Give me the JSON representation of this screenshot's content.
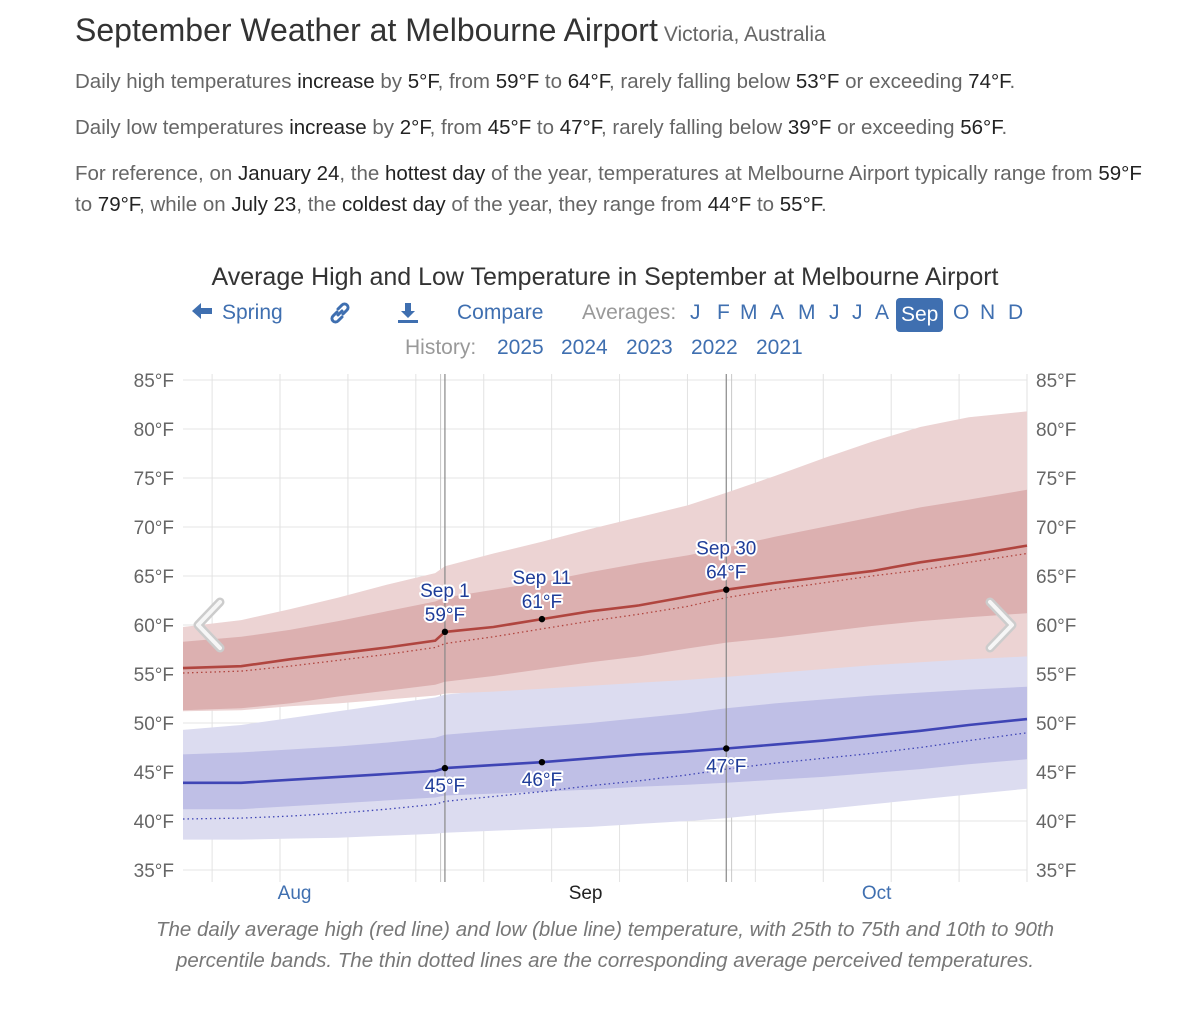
{
  "header": {
    "title": "September Weather at Melbourne Airport",
    "subtitle": "Victoria, Australia"
  },
  "summary": {
    "high": {
      "lead": "Daily high temperatures ",
      "trend": "increase",
      "by_word": " by ",
      "delta": "5°F",
      "from_word": ", from ",
      "start": "59°F",
      "to_word": " to ",
      "end": "64°F",
      "below_word": ", rarely falling below ",
      "low_bound": "53°F",
      "exceed_word": " or exceeding ",
      "high_bound": "74°F",
      "tail": "."
    },
    "low": {
      "lead": "Daily low temperatures ",
      "trend": "increase",
      "by_word": " by ",
      "delta": "2°F",
      "from_word": ", from ",
      "start": "45°F",
      "to_word": " to ",
      "end": "47°F",
      "below_word": ", rarely falling below ",
      "low_bound": "39°F",
      "exceed_word": " or exceeding ",
      "high_bound": "56°F",
      "tail": "."
    },
    "reference": {
      "t1": "For reference, on ",
      "hot_date": "January 24",
      "t2": ", the ",
      "hot_label": "hottest day",
      "t3": " of the year, temperatures at Melbourne Airport typically range from ",
      "hot_low": "59°F",
      "t4": " to ",
      "hot_high": "79°F",
      "t5": ", while on ",
      "cold_date": "July 23",
      "t6": ", the ",
      "cold_label": "coldest day",
      "t7": " of the year, they range from ",
      "cold_low": "44°F",
      "t8": " to ",
      "cold_high": "55°F",
      "t9": "."
    }
  },
  "nav": {
    "prev_label": "Spring",
    "compare_label": "Compare",
    "averages_label": "Averages:",
    "months": [
      "J",
      "F",
      "M",
      "A",
      "M",
      "J",
      "J",
      "A",
      "Sep",
      "O",
      "N",
      "D"
    ],
    "history_label": "History:",
    "years": [
      "2025",
      "2024",
      "2023",
      "2022",
      "2021"
    ]
  },
  "icons": {
    "prev": "arrow-left-icon",
    "link": "link-icon",
    "download": "download-icon",
    "chart_prev": "chevron-left-icon",
    "chart_next": "chevron-right-icon"
  },
  "colors": {
    "accent": "#3f6fb0",
    "high_line": "#b0453f",
    "low_line": "#3f45b5",
    "high_band_outer": "#ecd3d3",
    "high_band_inner": "#dcb0b0",
    "low_band_outer": "#dcdcf0",
    "low_band_inner": "#bfbfe6"
  },
  "chart_data": {
    "type": "area",
    "title": "Average High and Low Temperature in September at Melbourne Airport",
    "ylim": [
      35,
      85
    ],
    "yticks": [
      85,
      80,
      75,
      70,
      65,
      60,
      55,
      50,
      45,
      40,
      35
    ],
    "ytick_suffix": "°F",
    "xlim": [
      -26,
      61
    ],
    "month_labels": [
      {
        "label": "Aug",
        "x": -14.5,
        "current": false
      },
      {
        "label": "Sep",
        "x": 15.5,
        "current": true
      },
      {
        "label": "Oct",
        "x": 45.5,
        "current": false
      }
    ],
    "month_boundaries": [
      1,
      31
    ],
    "series": [
      {
        "name": "high",
        "x": [
          -26,
          -20,
          -15,
          -10,
          -5,
          0,
          1,
          6,
          11,
          16,
          21,
          26,
          30,
          35,
          40,
          45,
          50,
          55,
          61
        ],
        "mean": [
          55.6,
          55.8,
          56.5,
          57.1,
          57.7,
          58.4,
          59.3,
          59.8,
          60.6,
          61.4,
          62.0,
          62.9,
          63.6,
          64.3,
          64.9,
          65.5,
          66.4,
          67.1,
          68.1
        ],
        "p25": [
          51.3,
          51.5,
          52.0,
          52.7,
          53.3,
          53.9,
          54.2,
          54.8,
          55.5,
          56.2,
          56.8,
          57.6,
          58.2,
          58.7,
          59.3,
          59.9,
          60.4,
          60.8,
          61.2
        ],
        "p75": [
          58.3,
          58.8,
          59.5,
          60.4,
          61.4,
          62.4,
          62.8,
          63.6,
          64.4,
          65.4,
          66.3,
          67.1,
          67.9,
          69.0,
          70.0,
          71.0,
          72.0,
          72.8,
          73.8
        ],
        "p10": [
          51.2,
          51.3,
          51.7,
          52.0,
          52.4,
          52.8,
          53.0,
          53.2,
          53.5,
          53.8,
          54.1,
          54.4,
          54.7,
          55.1,
          55.5,
          55.9,
          56.2,
          56.5,
          56.8
        ],
        "p90": [
          59.8,
          60.5,
          61.6,
          62.8,
          64.1,
          65.3,
          66.0,
          67.3,
          68.5,
          69.8,
          71.0,
          72.2,
          73.5,
          75.2,
          77.0,
          78.7,
          80.2,
          81.2,
          81.8
        ],
        "perceived": [
          55.1,
          55.3,
          55.8,
          56.4,
          57.0,
          57.7,
          58.1,
          58.8,
          59.6,
          60.4,
          61.1,
          61.9,
          62.8,
          63.6,
          64.3,
          65.0,
          65.6,
          66.4,
          67.3
        ]
      },
      {
        "name": "low",
        "x": [
          -26,
          -20,
          -15,
          -10,
          -5,
          0,
          1,
          6,
          11,
          16,
          21,
          26,
          30,
          35,
          40,
          45,
          50,
          55,
          61
        ],
        "mean": [
          43.9,
          43.9,
          44.2,
          44.5,
          44.8,
          45.1,
          45.4,
          45.7,
          46.0,
          46.4,
          46.8,
          47.1,
          47.4,
          47.8,
          48.2,
          48.7,
          49.2,
          49.8,
          50.4
        ],
        "p25": [
          41.2,
          41.2,
          41.5,
          41.8,
          42.1,
          42.4,
          42.6,
          42.8,
          43.0,
          43.2,
          43.5,
          43.7,
          43.9,
          44.2,
          44.5,
          44.9,
          45.3,
          45.8,
          46.3
        ],
        "p75": [
          46.8,
          47.0,
          47.3,
          47.6,
          48.0,
          48.5,
          48.8,
          49.2,
          49.6,
          50.0,
          50.5,
          51.0,
          51.5,
          52.0,
          52.4,
          52.8,
          53.1,
          53.4,
          53.7
        ],
        "p10": [
          38.1,
          38.1,
          38.2,
          38.3,
          38.5,
          38.7,
          38.8,
          39.0,
          39.2,
          39.4,
          39.7,
          40.0,
          40.3,
          40.8,
          41.2,
          41.7,
          42.2,
          42.7,
          43.3
        ],
        "p90": [
          49.3,
          49.8,
          50.5,
          51.2,
          51.9,
          52.6,
          52.9,
          53.4,
          53.9,
          54.5,
          55.1,
          55.6,
          56.1,
          56.6,
          57.0,
          57.4,
          57.7,
          58.0,
          58.2
        ],
        "perceived": [
          40.2,
          40.3,
          40.5,
          40.8,
          41.2,
          41.7,
          42.0,
          42.5,
          43.0,
          43.6,
          44.1,
          44.7,
          45.3,
          45.9,
          46.4,
          46.9,
          47.5,
          48.2,
          49.0
        ]
      }
    ],
    "markers": [
      {
        "series": "high",
        "x": 1,
        "y": 59.3,
        "date": "Sep 1",
        "value": "59°F",
        "label_pos": "above",
        "guide": true
      },
      {
        "series": "high",
        "x": 11,
        "y": 60.6,
        "date": "Sep 11",
        "value": "61°F",
        "label_pos": "above",
        "guide": false
      },
      {
        "series": "high",
        "x": 30,
        "y": 63.6,
        "date": "Sep 30",
        "value": "64°F",
        "label_pos": "above",
        "guide": true
      },
      {
        "series": "low",
        "x": 1,
        "y": 45.4,
        "value": "45°F",
        "label_pos": "below"
      },
      {
        "series": "low",
        "x": 11,
        "y": 46.0,
        "value": "46°F",
        "label_pos": "below"
      },
      {
        "series": "low",
        "x": 30,
        "y": 47.4,
        "value": "47°F",
        "label_pos": "below"
      }
    ],
    "caption": "The daily average high (red line) and low (blue line) temperature, with 25th to 75th and 10th to 90th percentile bands. The thin dotted lines are the corresponding average perceived temperatures."
  }
}
